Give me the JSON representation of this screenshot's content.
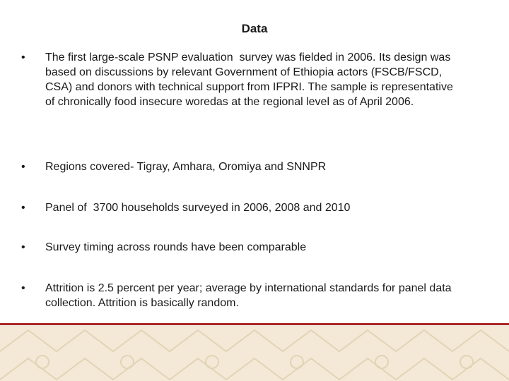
{
  "header": {
    "title": "Data"
  },
  "bullets": [
    "The first large-scale PSNP evaluation  survey was fielded in 2006. Its design was based on discussions by relevant Government of Ethiopia actors (FSCB/FSCD, CSA) and donors with technical support from IFPRI. The sample is representative of chronically food insecure woredas at the regional level as of April 2006.",
    "Regions covered- Tigray, Amhara, Oromiya and SNNPR",
    "Panel of  3700 households surveyed in 2006, 2008 and 2010",
    "Survey timing across rounds have been comparable",
    "Attrition is 2.5 percent per year; average by international standards for panel data collection. Attrition is basically random."
  ]
}
